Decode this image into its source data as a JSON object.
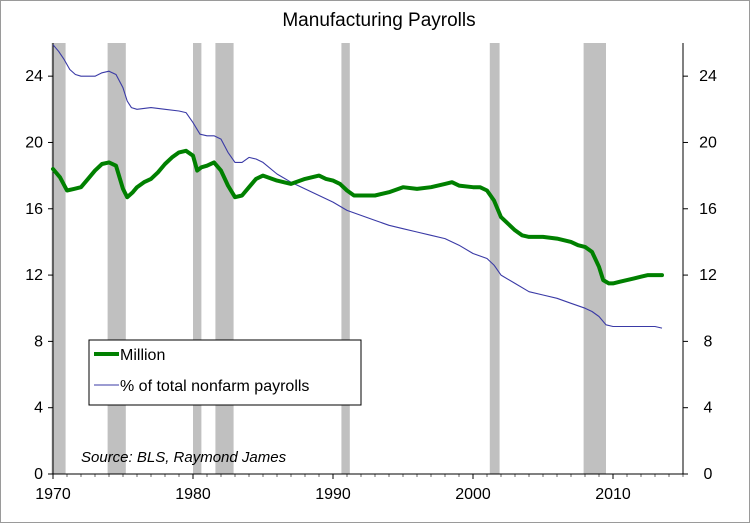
{
  "chart_data": {
    "type": "line",
    "title": "Manufacturing Payrolls",
    "source": "Source: BLS, Raymond James",
    "xlim": [
      1970,
      2015
    ],
    "ylim": [
      0,
      26
    ],
    "x_ticks": [
      "1970",
      "1980",
      "1990",
      "2000",
      "2010"
    ],
    "y_ticks": [
      "0",
      "4",
      "8",
      "12",
      "16",
      "20",
      "24"
    ],
    "y2_ticks": [
      "0",
      "4",
      "8",
      "12",
      "16",
      "20",
      "24"
    ],
    "legend_position": "lower-left",
    "recessions": [
      [
        1969.9,
        1970.9
      ],
      [
        1973.9,
        1975.2
      ],
      [
        1980.0,
        1980.6
      ],
      [
        1981.6,
        1982.9
      ],
      [
        1990.6,
        1991.2
      ],
      [
        2001.2,
        2001.9
      ],
      [
        2007.9,
        2009.5
      ]
    ],
    "series": [
      {
        "name": "Million",
        "color": "#008000",
        "axis": "left",
        "x": [
          1970.0,
          1970.5,
          1971.0,
          1971.5,
          1972.0,
          1972.5,
          1973.0,
          1973.5,
          1974.0,
          1974.5,
          1975.0,
          1975.3,
          1975.7,
          1976.0,
          1976.5,
          1977.0,
          1977.5,
          1978.0,
          1978.5,
          1979.0,
          1979.5,
          1980.0,
          1980.3,
          1980.6,
          1981.0,
          1981.5,
          1982.0,
          1982.5,
          1983.0,
          1983.5,
          1984.0,
          1984.5,
          1985.0,
          1986.0,
          1987.0,
          1988.0,
          1989.0,
          1989.5,
          1990.0,
          1990.5,
          1991.0,
          1991.5,
          1992.0,
          1993.0,
          1994.0,
          1995.0,
          1996.0,
          1997.0,
          1998.0,
          1998.5,
          1999.0,
          2000.0,
          2000.5,
          2001.0,
          2001.5,
          2002.0,
          2002.5,
          2003.0,
          2003.5,
          2004.0,
          2005.0,
          2006.0,
          2007.0,
          2007.5,
          2008.0,
          2008.5,
          2009.0,
          2009.3,
          2009.7,
          2010.0,
          2010.5,
          2011.0,
          2011.5,
          2012.0,
          2012.5,
          2013.0,
          2013.5
        ],
        "values": [
          18.4,
          17.9,
          17.1,
          17.2,
          17.3,
          17.8,
          18.3,
          18.7,
          18.8,
          18.6,
          17.2,
          16.7,
          17.0,
          17.3,
          17.6,
          17.8,
          18.2,
          18.7,
          19.1,
          19.4,
          19.5,
          19.2,
          18.3,
          18.5,
          18.6,
          18.8,
          18.3,
          17.4,
          16.7,
          16.8,
          17.3,
          17.8,
          18.0,
          17.7,
          17.5,
          17.8,
          18.0,
          17.8,
          17.7,
          17.5,
          17.1,
          16.8,
          16.8,
          16.8,
          17.0,
          17.3,
          17.2,
          17.3,
          17.5,
          17.6,
          17.4,
          17.3,
          17.3,
          17.1,
          16.5,
          15.5,
          15.1,
          14.7,
          14.4,
          14.3,
          14.3,
          14.2,
          14.0,
          13.8,
          13.7,
          13.4,
          12.5,
          11.7,
          11.5,
          11.5,
          11.6,
          11.7,
          11.8,
          11.9,
          12.0,
          12.0,
          12.0
        ]
      },
      {
        "name": "% of total nonfarm payrolls",
        "color": "#3a3aa6",
        "axis": "right",
        "x": [
          1970.0,
          1970.4,
          1970.8,
          1971.2,
          1971.6,
          1972.0,
          1972.5,
          1973.0,
          1973.5,
          1974.0,
          1974.5,
          1975.0,
          1975.3,
          1975.6,
          1976.0,
          1977.0,
          1978.0,
          1979.0,
          1979.5,
          1980.0,
          1980.5,
          1981.0,
          1981.5,
          1982.0,
          1982.5,
          1983.0,
          1983.5,
          1984.0,
          1984.5,
          1985.0,
          1986.0,
          1987.0,
          1988.0,
          1989.0,
          1990.0,
          1991.0,
          1992.0,
          1993.0,
          1994.0,
          1995.0,
          1996.0,
          1997.0,
          1998.0,
          1999.0,
          2000.0,
          2001.0,
          2001.5,
          2002.0,
          2003.0,
          2004.0,
          2005.0,
          2006.0,
          2007.0,
          2008.0,
          2008.5,
          2009.0,
          2009.5,
          2010.0,
          2011.0,
          2012.0,
          2013.0,
          2013.5
        ],
        "values": [
          25.9,
          25.5,
          25.0,
          24.4,
          24.1,
          24.0,
          24.0,
          24.0,
          24.2,
          24.3,
          24.1,
          23.3,
          22.5,
          22.1,
          22.0,
          22.1,
          22.0,
          21.9,
          21.8,
          21.2,
          20.5,
          20.4,
          20.4,
          20.2,
          19.4,
          18.8,
          18.8,
          19.1,
          19.0,
          18.8,
          18.1,
          17.6,
          17.2,
          16.8,
          16.4,
          15.9,
          15.6,
          15.3,
          15.0,
          14.8,
          14.6,
          14.4,
          14.2,
          13.8,
          13.3,
          13.0,
          12.6,
          12.0,
          11.5,
          11.0,
          10.8,
          10.6,
          10.3,
          10.0,
          9.8,
          9.5,
          9.0,
          8.9,
          8.9,
          8.9,
          8.9,
          8.8
        ]
      }
    ]
  }
}
